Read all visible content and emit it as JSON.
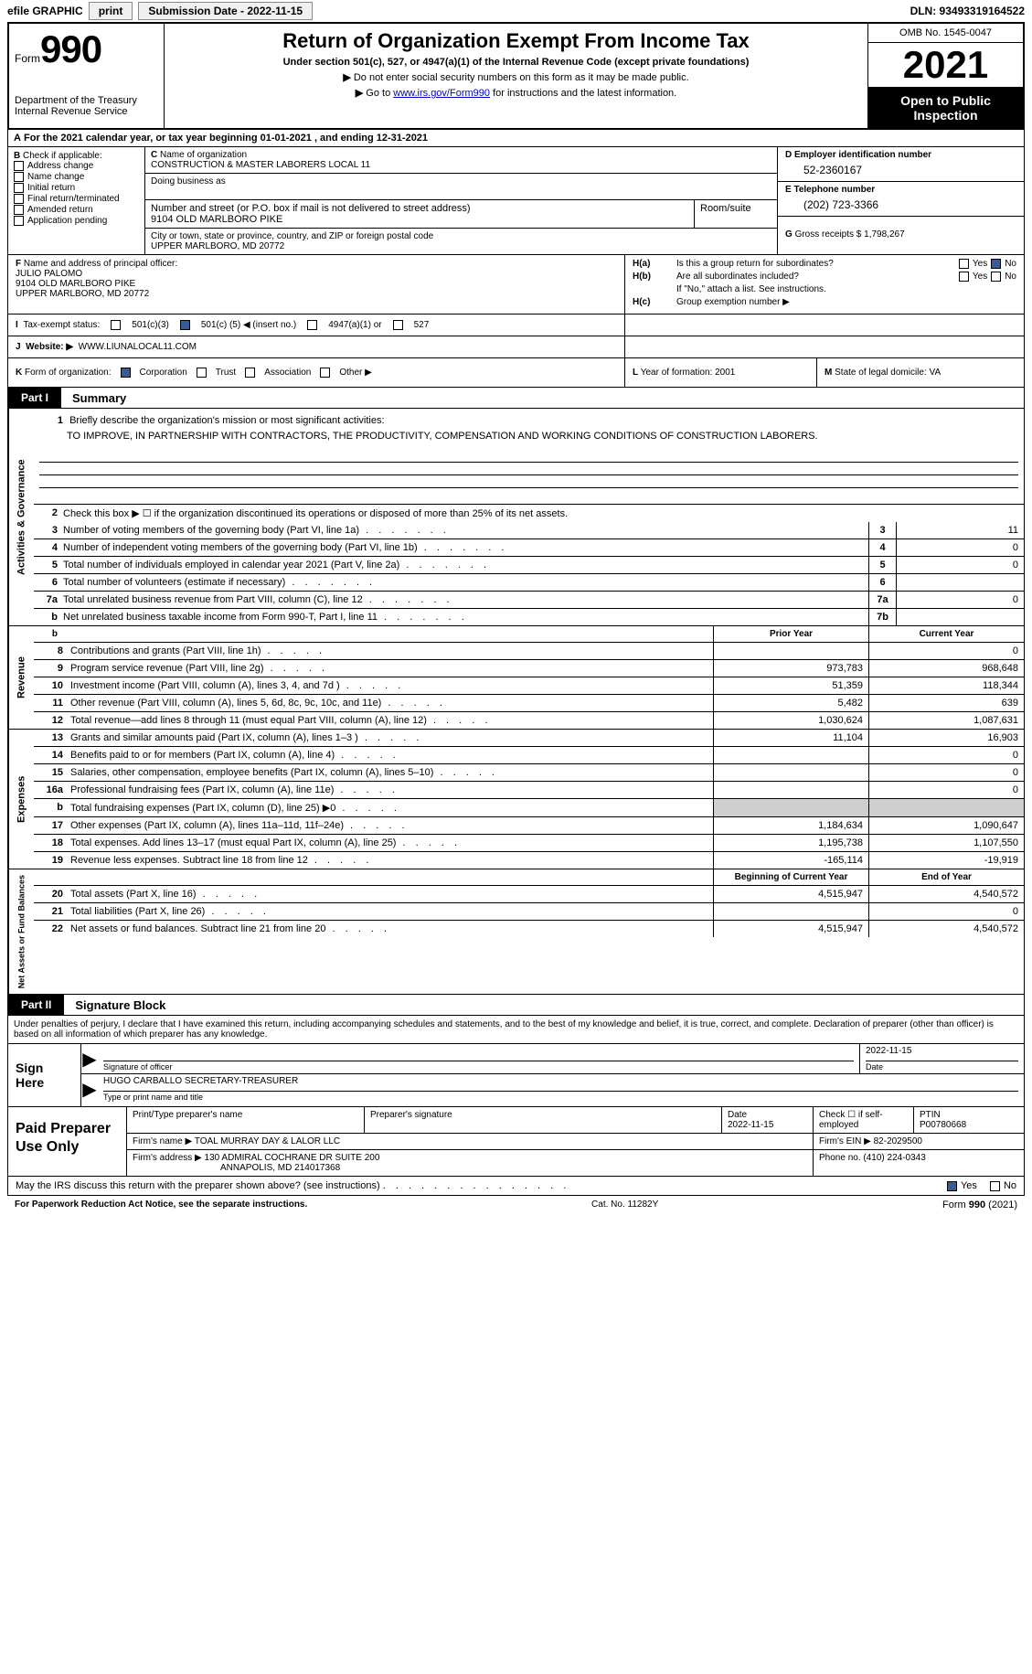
{
  "topbar": {
    "efile": "efile GRAPHIC",
    "print": "print",
    "sub_label": "Submission Date - 2022-11-15",
    "dln_label": "DLN: 93493319164522"
  },
  "header": {
    "form_word": "Form",
    "form_number": "990",
    "dept": "Department of the Treasury",
    "irs": "Internal Revenue Service",
    "title": "Return of Organization Exempt From Income Tax",
    "sub1": "Under section 501(c), 527, or 4947(a)(1) of the Internal Revenue Code (except private foundations)",
    "sub2": "Do not enter social security numbers on this form as it may be made public.",
    "sub3_pre": "Go to ",
    "sub3_link": "www.irs.gov/Form990",
    "sub3_post": " for instructions and the latest information.",
    "omb": "OMB No. 1545-0047",
    "year": "2021",
    "open_line1": "Open to Public",
    "open_line2": "Inspection"
  },
  "row_a": "For the 2021 calendar year, or tax year beginning 01-01-2021    , and ending 12-31-2021",
  "col_b": {
    "title": "Check if applicable:",
    "opts": [
      "Address change",
      "Name change",
      "Initial return",
      "Final return/terminated",
      "Amended return",
      "Application pending"
    ]
  },
  "col_c": {
    "name_label": "Name of organization",
    "name_val": "CONSTRUCTION & MASTER LABORERS LOCAL 11",
    "dba_label": "Doing business as",
    "street_label": "Number and street (or P.O. box if mail is not delivered to street address)",
    "room_label": "Room/suite",
    "street_val": "9104 OLD MARLBORO PIKE",
    "city_label": "City or town, state or province, country, and ZIP or foreign postal code",
    "city_val": "UPPER MARLBORO, MD  20772"
  },
  "col_d": {
    "ein_label": "Employer identification number",
    "ein_val": "52-2360167",
    "tel_label": "Telephone number",
    "tel_val": "(202) 723-3366",
    "gross_label": "Gross receipts $",
    "gross_val": "1,798,267"
  },
  "fh": {
    "f_label": "Name and address of principal officer:",
    "officer_name": "JULIO PALOMO",
    "officer_addr1": "9104 OLD MARLBORO PIKE",
    "officer_addr2": "UPPER MARLBORO, MD  20772",
    "ha": "Is this a group return for subordinates?",
    "hb": "Are all subordinates included?",
    "hb_note": "If \"No,\" attach a list. See instructions.",
    "hc": "Group exemption number ▶"
  },
  "row_i": {
    "label": "Tax-exempt status:",
    "c3": "501(c)(3)",
    "c_open": "501(c) (",
    "c_num": "5",
    "c_close": ") ◀ (insert no.)",
    "a1": "4947(a)(1) or",
    "s527": "527"
  },
  "row_j": {
    "label": "Website: ▶",
    "val": "WWW.LIUNALOCAL11.COM"
  },
  "row_k": {
    "label": "Form of organization:",
    "corp": "Corporation",
    "trust": "Trust",
    "assoc": "Association",
    "other": "Other ▶",
    "l_label": "Year of formation:",
    "l_val": "2001",
    "m_label": "State of legal domicile:",
    "m_val": "VA"
  },
  "part1": {
    "tab": "Part I",
    "title": "Summary",
    "side_ag": "Activities & Governance",
    "side_rev": "Revenue",
    "side_exp": "Expenses",
    "side_na": "Net Assets or Fund Balances",
    "q1_label": "Briefly describe the organization's mission or most significant activities:",
    "q1_val": "TO IMPROVE, IN PARTNERSHIP WITH CONTRACTORS, THE PRODUCTIVITY, COMPENSATION AND WORKING CONDITIONS OF CONSTRUCTION LABORERS.",
    "q2": "Check this box ▶ ☐ if the organization discontinued its operations or disposed of more than 25% of its net assets.",
    "rows_ag": [
      {
        "n": "3",
        "t": "Number of voting members of the governing body (Part VI, line 1a)",
        "c": "3",
        "v": "11"
      },
      {
        "n": "4",
        "t": "Number of independent voting members of the governing body (Part VI, line 1b)",
        "c": "4",
        "v": "0"
      },
      {
        "n": "5",
        "t": "Total number of individuals employed in calendar year 2021 (Part V, line 2a)",
        "c": "5",
        "v": "0"
      },
      {
        "n": "6",
        "t": "Total number of volunteers (estimate if necessary)",
        "c": "6",
        "v": ""
      },
      {
        "n": "7a",
        "t": "Total unrelated business revenue from Part VIII, column (C), line 12",
        "c": "7a",
        "v": "0"
      },
      {
        "n": "b",
        "t": "Net unrelated business taxable income from Form 990-T, Part I, line 11",
        "c": "7b",
        "v": ""
      }
    ],
    "prior_head": "Prior Year",
    "curr_head": "Current Year",
    "rows_rev": [
      {
        "n": "8",
        "t": "Contributions and grants (Part VIII, line 1h)",
        "p": "",
        "c": "0"
      },
      {
        "n": "9",
        "t": "Program service revenue (Part VIII, line 2g)",
        "p": "973,783",
        "c": "968,648"
      },
      {
        "n": "10",
        "t": "Investment income (Part VIII, column (A), lines 3, 4, and 7d )",
        "p": "51,359",
        "c": "118,344"
      },
      {
        "n": "11",
        "t": "Other revenue (Part VIII, column (A), lines 5, 6d, 8c, 9c, 10c, and 11e)",
        "p": "5,482",
        "c": "639"
      },
      {
        "n": "12",
        "t": "Total revenue—add lines 8 through 11 (must equal Part VIII, column (A), line 12)",
        "p": "1,030,624",
        "c": "1,087,631"
      }
    ],
    "rows_exp": [
      {
        "n": "13",
        "t": "Grants and similar amounts paid (Part IX, column (A), lines 1–3 )",
        "p": "11,104",
        "c": "16,903"
      },
      {
        "n": "14",
        "t": "Benefits paid to or for members (Part IX, column (A), line 4)",
        "p": "",
        "c": "0"
      },
      {
        "n": "15",
        "t": "Salaries, other compensation, employee benefits (Part IX, column (A), lines 5–10)",
        "p": "",
        "c": "0"
      },
      {
        "n": "16a",
        "t": "Professional fundraising fees (Part IX, column (A), line 11e)",
        "p": "",
        "c": "0"
      },
      {
        "n": "b",
        "t": "Total fundraising expenses (Part IX, column (D), line 25) ▶0",
        "p": "SHADE",
        "c": "SHADE"
      },
      {
        "n": "17",
        "t": "Other expenses (Part IX, column (A), lines 11a–11d, 11f–24e)",
        "p": "1,184,634",
        "c": "1,090,647"
      },
      {
        "n": "18",
        "t": "Total expenses. Add lines 13–17 (must equal Part IX, column (A), line 25)",
        "p": "1,195,738",
        "c": "1,107,550"
      },
      {
        "n": "19",
        "t": "Revenue less expenses. Subtract line 18 from line 12",
        "p": "-165,114",
        "c": "-19,919"
      }
    ],
    "na_prior": "Beginning of Current Year",
    "na_curr": "End of Year",
    "rows_na": [
      {
        "n": "20",
        "t": "Total assets (Part X, line 16)",
        "p": "4,515,947",
        "c": "4,540,572"
      },
      {
        "n": "21",
        "t": "Total liabilities (Part X, line 26)",
        "p": "",
        "c": "0"
      },
      {
        "n": "22",
        "t": "Net assets or fund balances. Subtract line 21 from line 20",
        "p": "4,515,947",
        "c": "4,540,572"
      }
    ]
  },
  "part2": {
    "tab": "Part II",
    "title": "Signature Block",
    "penalties": "Under penalties of perjury, I declare that I have examined this return, including accompanying schedules and statements, and to the best of my knowledge and belief, it is true, correct, and complete. Declaration of preparer (other than officer) is based on all information of which preparer has any knowledge.",
    "sign_here": "Sign Here",
    "sig_officer_label": "Signature of officer",
    "sig_date": "2022-11-15",
    "date_label": "Date",
    "typed_name": "HUGO CARBALLO  SECRETARY-TREASURER",
    "typed_label": "Type or print name and title",
    "paid_label": "Paid Preparer Use Only",
    "prep_name_label": "Print/Type preparer's name",
    "prep_sig_label": "Preparer's signature",
    "prep_date_label": "Date",
    "prep_date": "2022-11-15",
    "self_emp": "Check ☐ if self-employed",
    "ptin_label": "PTIN",
    "ptin": "P00780668",
    "firm_name_label": "Firm's name    ▶",
    "firm_name": "TOAL MURRAY DAY & LALOR LLC",
    "firm_ein_label": "Firm's EIN ▶",
    "firm_ein": "82-2029500",
    "firm_addr_label": "Firm's address ▶",
    "firm_addr1": "130 ADMIRAL COCHRANE DR SUITE 200",
    "firm_addr2": "ANNAPOLIS, MD  214017368",
    "phone_label": "Phone no.",
    "phone": "(410) 224-0343"
  },
  "discuss": {
    "text": "May the IRS discuss this return with the preparer shown above? (see instructions)",
    "yes": "Yes",
    "no": "No"
  },
  "footer": {
    "left": "For Paperwork Reduction Act Notice, see the separate instructions.",
    "mid": "Cat. No. 11282Y",
    "right": "Form 990 (2021)"
  },
  "letters": {
    "A": "A",
    "B": "B",
    "C": "C",
    "D": "D",
    "E": "E",
    "F": "F",
    "G": "G",
    "H_a": "H(a)",
    "H_b": "H(b)",
    "H_c": "H(c)",
    "I": "I",
    "J": "J",
    "K": "K",
    "L": "L",
    "M": "M"
  },
  "yn": {
    "yes": "Yes",
    "no": "No"
  }
}
